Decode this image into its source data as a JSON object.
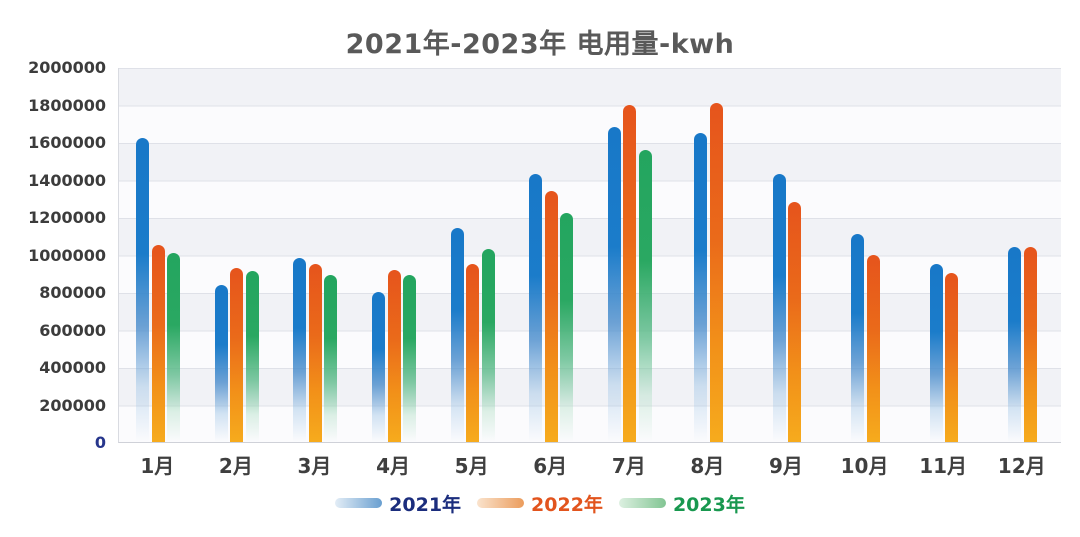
{
  "title": "2021年-2023年 电用量-kwh",
  "chart_data": {
    "type": "bar",
    "title": "2021年-2023年 电用量-kwh",
    "xlabel": "",
    "ylabel": "",
    "categories": [
      "1月",
      "2月",
      "3月",
      "4月",
      "5月",
      "6月",
      "7月",
      "8月",
      "9月",
      "10月",
      "11月",
      "12月"
    ],
    "series": [
      {
        "name": "2021年",
        "color": "#1878c8",
        "values": [
          1620000,
          840000,
          980000,
          800000,
          1140000,
          1430000,
          1680000,
          1650000,
          1430000,
          1110000,
          950000,
          1040000
        ]
      },
      {
        "name": "2022年",
        "color": "#e6541c",
        "color_bottom": "#f6ab1d",
        "values": [
          1050000,
          930000,
          950000,
          920000,
          950000,
          1340000,
          1800000,
          1810000,
          1280000,
          1000000,
          900000,
          1040000
        ]
      },
      {
        "name": "2023年",
        "color": "#23a55f",
        "values": [
          1010000,
          910000,
          890000,
          890000,
          1030000,
          1220000,
          1560000,
          null,
          null,
          null,
          null,
          null
        ]
      }
    ],
    "ylim": [
      0,
      2000000
    ],
    "ytick_step": 200000,
    "ytick_labels": [
      "2000000",
      "1800000",
      "1600000",
      "1400000",
      "1200000",
      "1000000",
      "800000",
      "600000",
      "400000",
      "200000",
      "0"
    ],
    "grid": true,
    "split_area": true,
    "legend_position": "bottom"
  },
  "legend": {
    "items": [
      {
        "label": "2021年",
        "text_color": "#1b2d7d"
      },
      {
        "label": "2022年",
        "text_color": "#e2541d"
      },
      {
        "label": "2023年",
        "text_color": "#18984f"
      }
    ]
  }
}
